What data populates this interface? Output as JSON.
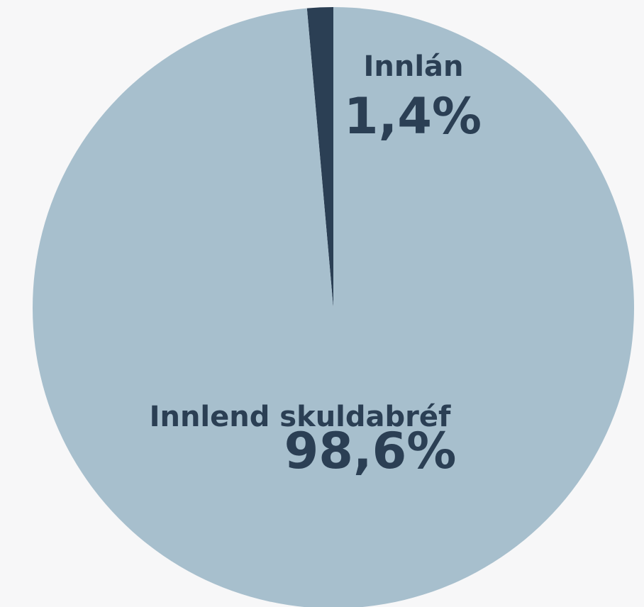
{
  "chart_data": {
    "type": "pie",
    "categories": [
      "Innlán",
      "Innlend skuldabréf"
    ],
    "values": [
      1.4,
      98.6
    ],
    "value_labels": [
      "1,4%",
      "98,6%"
    ],
    "colors": [
      "#2b3f54",
      "#a7bfcd"
    ]
  }
}
